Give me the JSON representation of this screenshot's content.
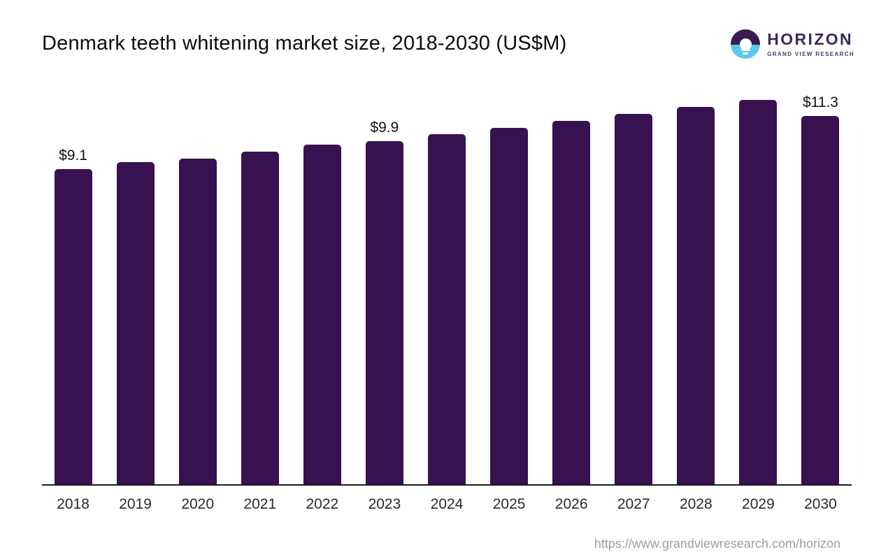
{
  "header": {
    "title": "Denmark teeth whitening market size, 2018-2030 (US$M)",
    "logo": {
      "brand": "HORIZON",
      "tagline": "GRAND VIEW RESEARCH"
    }
  },
  "chart_data": {
    "type": "bar",
    "title": "Denmark teeth whitening market size, 2018-2030 (US$M)",
    "unit": "US$M",
    "categories": [
      "2018",
      "2019",
      "2020",
      "2021",
      "2022",
      "2023",
      "2024",
      "2025",
      "2026",
      "2027",
      "2028",
      "2029",
      "2030"
    ],
    "values": [
      9.1,
      9.3,
      9.4,
      9.6,
      9.8,
      9.9,
      10.1,
      10.3,
      10.5,
      10.7,
      10.9,
      11.1,
      11.3
    ],
    "data_labels": {
      "2018": "$9.1",
      "2023": "$9.9",
      "2030": "$11.3"
    },
    "xlabel": "",
    "ylabel": "",
    "ylim": [
      0,
      11.3
    ],
    "grid": false,
    "legend": false,
    "bar_color": "#371150",
    "axis_color": "#1c1c1c"
  },
  "footer": {
    "url": "https://www.grandviewresearch.com/horizon"
  },
  "colors": {
    "bar": "#371150",
    "logo_purple": "#3a1b52",
    "logo_blue": "#5ac8ec",
    "brand_text": "#3a2a5e",
    "url_text": "#9e9e9e"
  }
}
